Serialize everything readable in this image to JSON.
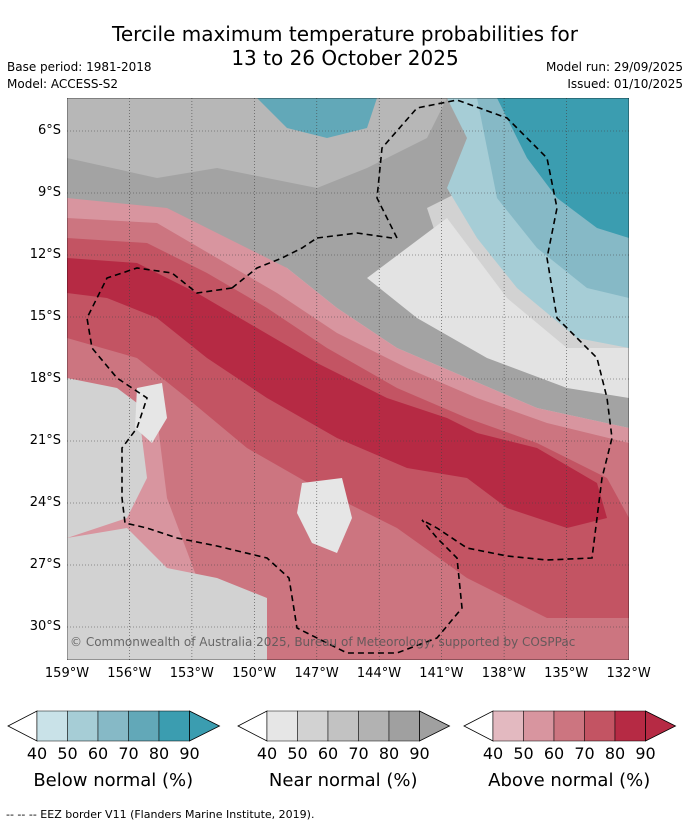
{
  "title_line1": "Tercile maximum temperature probabilities for",
  "title_line2": "13 to 26 October 2025",
  "base_period": "Base period: 1981-2018",
  "model": "Model: ACCESS-S2",
  "model_run": "Model run: 29/09/2025",
  "issued": "Issued: 01/10/2025",
  "lat_labels": [
    "6°S",
    "9°S",
    "12°S",
    "15°S",
    "18°S",
    "21°S",
    "24°S",
    "27°S",
    "30°S"
  ],
  "lon_labels": [
    "159°W",
    "156°W",
    "153°W",
    "150°W",
    "147°W",
    "144°W",
    "141°W",
    "138°W",
    "135°W",
    "132°W"
  ],
  "copyright": "© Commonwealth of Australia 2025, Bureau of Meteorology, supported by COSPPac",
  "colorbars": [
    {
      "title": "Below normal (%)",
      "ticks": [
        "40",
        "50",
        "60",
        "70",
        "80",
        "90"
      ],
      "colors": [
        "#ffffff",
        "#c9e2e8",
        "#a6cdd6",
        "#86b9c6",
        "#62a8b8",
        "#3b9db0"
      ]
    },
    {
      "title": "Near normal (%)",
      "ticks": [
        "40",
        "50",
        "60",
        "70",
        "80",
        "90"
      ],
      "colors": [
        "#ffffff",
        "#e6e6e6",
        "#d2d2d2",
        "#c2c2c2",
        "#b2b2b2",
        "#a0a0a0"
      ]
    },
    {
      "title": "Above normal (%)",
      "ticks": [
        "40",
        "50",
        "60",
        "70",
        "80",
        "90"
      ],
      "colors": [
        "#ffffff",
        "#e3b9c0",
        "#d8959f",
        "#cc7580",
        "#c35463",
        "#b62a44"
      ]
    }
  ],
  "footnote": "-- -- -- EEZ border V11 (Flanders Marine Institute, 2019)."
}
